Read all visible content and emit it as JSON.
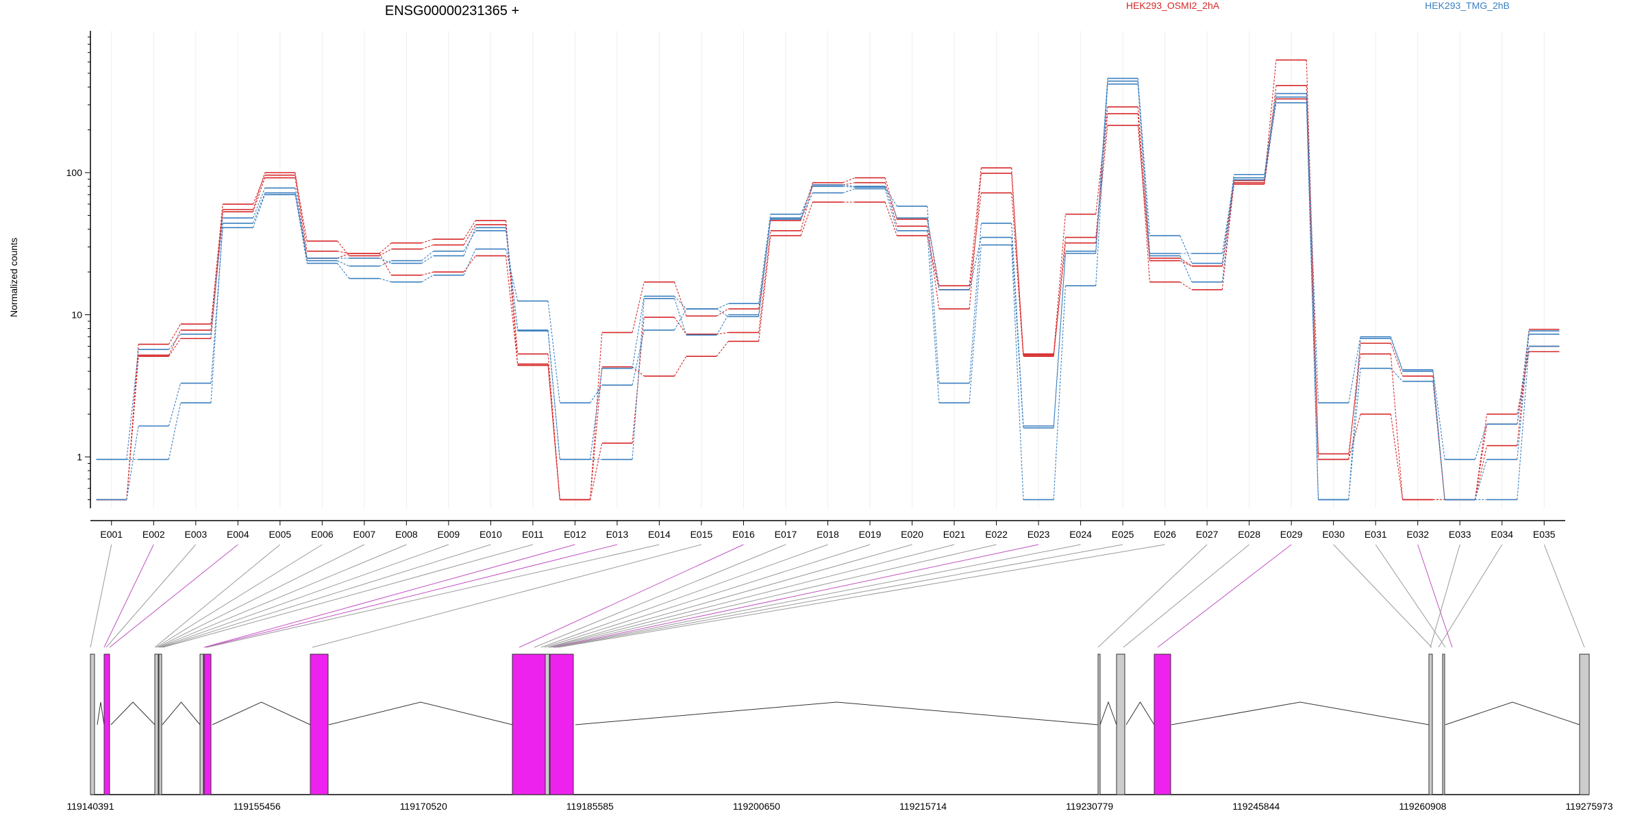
{
  "title": "ENSG00000231365 +",
  "legend": [
    {
      "label": "HEK293_OSMI2_2hA",
      "color": "#d62728"
    },
    {
      "label": "HEK293_TMG_2hB",
      "color": "#1f77b4"
    }
  ],
  "colors": {
    "red": "#d62728",
    "blue": "#3a7fbf",
    "exon_highlight": "#ee22ee",
    "exon_plain": "#cccccc",
    "connector_gray": "#999999",
    "connector_magenta": "#c050c0"
  },
  "chart_data": {
    "type": "line",
    "title": "ENSG00000231365 +",
    "ylabel": "Normalized counts",
    "yscale": "log",
    "ylim": [
      0.5,
      800
    ],
    "yticks": [
      1,
      10,
      100
    ],
    "grid": true,
    "legend_position": "top",
    "categories": [
      "E001",
      "E002",
      "E003",
      "E004",
      "E005",
      "E006",
      "E007",
      "E008",
      "E009",
      "E010",
      "E011",
      "E012",
      "E013",
      "E014",
      "E015",
      "E016",
      "E017",
      "E018",
      "E019",
      "E020",
      "E021",
      "E022",
      "E023",
      "E024",
      "E025",
      "E026",
      "E027",
      "E028",
      "E029",
      "E030",
      "E031",
      "E032",
      "E033",
      "E034",
      "E035"
    ],
    "series": [
      {
        "group": "HEK293_OSMI2_2hA",
        "values": [
          0.5,
          5.2,
          7.8,
          55,
          100,
          28,
          27,
          32,
          34,
          46,
          5.3,
          0.5,
          7.5,
          17,
          9.8,
          11,
          46,
          85,
          92,
          47,
          16,
          108,
          5.3,
          51,
          290,
          25,
          22,
          88,
          620,
          1.05,
          5.3,
          0.5,
          0.5,
          1.2,
          7.9
        ]
      },
      {
        "group": "HEK293_OSMI2_2hA",
        "values": [
          0.5,
          6.2,
          8.6,
          60,
          96,
          33,
          26,
          29,
          31,
          43,
          4.5,
          0.5,
          1.25,
          9.6,
          7.3,
          7.5,
          39,
          82,
          85,
          42,
          11,
          99,
          5.2,
          35,
          260,
          17,
          15,
          85,
          410,
          0.96,
          6.3,
          3.7,
          0.5,
          1.7,
          6.0
        ]
      },
      {
        "group": "HEK293_OSMI2_2hA",
        "values": [
          0.5,
          5.1,
          6.8,
          53,
          92,
          25,
          27,
          19,
          20,
          26,
          4.4,
          0.5,
          4.3,
          3.7,
          5.1,
          6.5,
          36,
          62,
          62,
          36,
          15,
          72,
          5.1,
          32,
          215,
          24,
          22,
          83,
          330,
          0.96,
          2.0,
          0.5,
          0.5,
          2.0,
          5.5
        ]
      },
      {
        "group": "HEK293_TMG_2hB",
        "values": [
          0.96,
          5.7,
          7.3,
          48,
          78,
          24,
          22,
          24,
          28,
          39,
          7.8,
          0.96,
          4.2,
          13.5,
          11,
          12,
          51,
          80,
          79,
          58,
          3.3,
          44,
          1.65,
          28,
          460,
          36,
          23,
          97,
          360,
          2.4,
          7.0,
          4.1,
          0.96,
          1.7,
          7.7
        ]
      },
      {
        "group": "HEK293_TMG_2hB",
        "values": [
          0.5,
          1.65,
          3.3,
          41,
          70,
          23,
          18,
          17,
          19,
          29,
          12.5,
          2.4,
          3.2,
          7.8,
          11,
          9.7,
          47,
          72,
          77,
          39,
          2.4,
          31,
          0.5,
          16,
          420,
          26,
          17,
          92,
          310,
          0.5,
          4.2,
          3.4,
          0.5,
          0.96,
          7.3
        ]
      },
      {
        "group": "HEK293_TMG_2hB",
        "values": [
          0.96,
          0.96,
          2.4,
          44,
          72,
          25,
          25,
          23,
          26,
          41,
          7.7,
          0.96,
          0.96,
          13,
          7.2,
          10,
          48,
          82,
          80,
          48,
          15,
          35,
          1.6,
          27,
          440,
          27,
          27,
          89,
          340,
          0.5,
          6.8,
          4.0,
          0.5,
          0.5,
          6.0
        ]
      }
    ],
    "genomic_axis": {
      "ticks": [
        "119140391",
        "119155456",
        "119170520",
        "119185585",
        "119200650",
        "119215714",
        "119230779",
        "119245844",
        "119260908",
        "119275973"
      ]
    }
  },
  "exon_model": {
    "note_hidden": false,
    "exons": [
      {
        "id": "E001",
        "highlight": false
      },
      {
        "id": "E002",
        "highlight": true
      },
      {
        "id": "E003",
        "highlight": false
      },
      {
        "id": "E004",
        "highlight": true
      },
      {
        "id": "E005",
        "highlight": false
      },
      {
        "id": "E006",
        "highlight": false
      },
      {
        "id": "E007",
        "highlight": false
      },
      {
        "id": "E008",
        "highlight": false
      },
      {
        "id": "E009",
        "highlight": false
      },
      {
        "id": "E010",
        "highlight": false
      },
      {
        "id": "E011",
        "highlight": false
      },
      {
        "id": "E012",
        "highlight": true
      },
      {
        "id": "E013",
        "highlight": true
      },
      {
        "id": "E014",
        "highlight": false
      },
      {
        "id": "E015",
        "highlight": false
      },
      {
        "id": "E016",
        "highlight": true
      },
      {
        "id": "E017",
        "highlight": false
      },
      {
        "id": "E018",
        "highlight": false
      },
      {
        "id": "E019",
        "highlight": false
      },
      {
        "id": "E020",
        "highlight": false
      },
      {
        "id": "E021",
        "highlight": false
      },
      {
        "id": "E022",
        "highlight": false
      },
      {
        "id": "E023",
        "highlight": true
      },
      {
        "id": "E024",
        "highlight": false
      },
      {
        "id": "E025",
        "highlight": false
      },
      {
        "id": "E026",
        "highlight": false
      },
      {
        "id": "E027",
        "highlight": false
      },
      {
        "id": "E028",
        "highlight": false
      },
      {
        "id": "E029",
        "highlight": true
      },
      {
        "id": "E030",
        "highlight": false
      },
      {
        "id": "E031",
        "highlight": false
      },
      {
        "id": "E032",
        "highlight": true
      },
      {
        "id": "E033",
        "highlight": false
      },
      {
        "id": "E034",
        "highlight": false
      },
      {
        "id": "E035",
        "highlight": false
      }
    ]
  }
}
